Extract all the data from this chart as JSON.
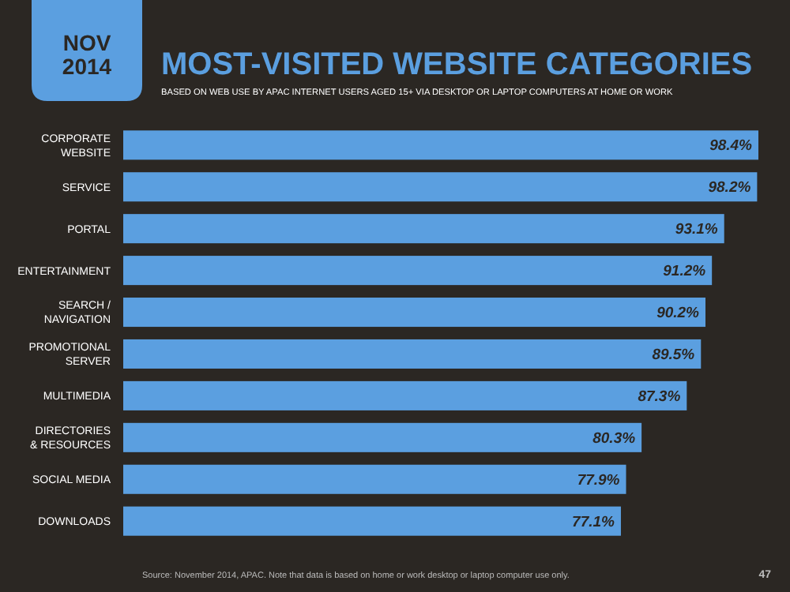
{
  "chart_data": {
    "type": "bar",
    "orientation": "horizontal",
    "title": "MOST-VISITED WEBSITE CATEGORIES",
    "subtitle": "BASED ON WEB USE BY APAC INTERNET USERS AGED 15+ VIA DESKTOP OR LAPTOP COMPUTERS AT HOME OR WORK",
    "categories": [
      "CORPORATE WEBSITE",
      "SERVICE",
      "PORTAL",
      "ENTERTAINMENT",
      "SEARCH / NAVIGATION",
      "PROMOTIONAL SERVER",
      "MULTIMEDIA",
      "DIRECTORIES & RESOURCES",
      "SOCIAL MEDIA",
      "DOWNLOADS"
    ],
    "values": [
      98.4,
      98.2,
      93.1,
      91.2,
      90.2,
      89.5,
      87.3,
      80.3,
      77.9,
      77.1
    ],
    "value_labels": [
      "98.4%",
      "98.2%",
      "93.1%",
      "91.2%",
      "90.2%",
      "89.5%",
      "87.3%",
      "80.3%",
      "77.9%",
      "77.1%"
    ],
    "color": "#5b9fe0",
    "tick_labels": "y",
    "annotations": [
      "NOV 2014",
      "Source: November 2014, APAC. Note that data is based on home or work desktop or laptop computer use only.",
      "47"
    ]
  }
}
